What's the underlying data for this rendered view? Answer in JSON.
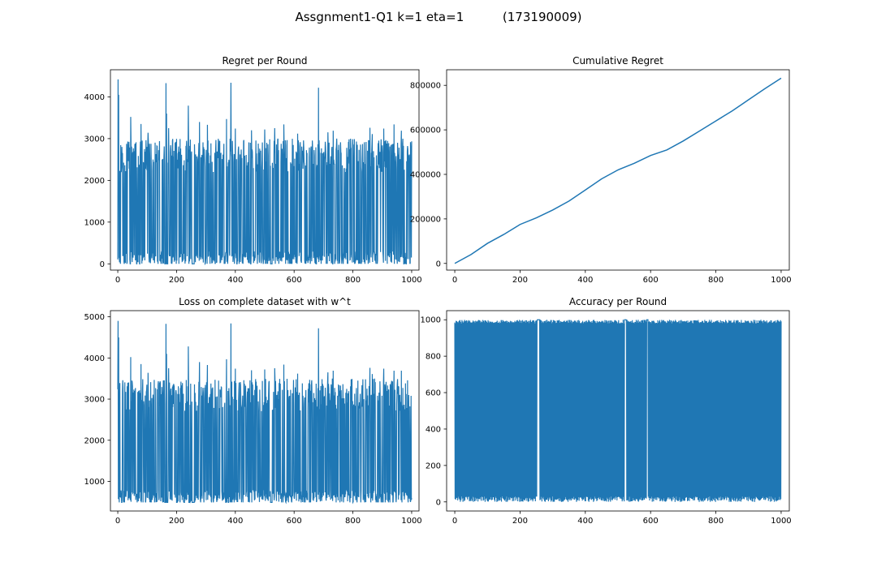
{
  "figure": {
    "suptitle": "Assgnment1-Q1 k=1 eta=1          (173190009)"
  },
  "colors": {
    "series": "#1f77b4",
    "axes": "#000000",
    "background": "#ffffff"
  },
  "chart_data": [
    {
      "type": "line",
      "title": "Regret per Round",
      "xlabel": "",
      "ylabel": "",
      "xlim": [
        -25,
        1025
      ],
      "ylim": [
        -150,
        4650
      ],
      "xticks": [
        0,
        200,
        400,
        600,
        800,
        1000
      ],
      "yticks": [
        0,
        1000,
        2000,
        3000,
        4000
      ],
      "grid": false,
      "series": [
        {
          "noise": {
            "n": 1001,
            "base": 0,
            "peak_min": 2200,
            "peak_max": 3000,
            "low_prob": 0.5,
            "gap_prob": 0.07,
            "seed": 11
          },
          "spikes": [
            [
              1,
              4420
            ],
            [
              3,
              4050
            ],
            [
              44,
              3520
            ],
            [
              79,
              3350
            ],
            [
              103,
              3140
            ],
            [
              164,
              4330
            ],
            [
              166,
              3600
            ],
            [
              173,
              3250
            ],
            [
              240,
              3790
            ],
            [
              278,
              3400
            ],
            [
              305,
              3330
            ],
            [
              370,
              3470
            ],
            [
              385,
              4340
            ],
            [
              400,
              3240
            ],
            [
              455,
              3200
            ],
            [
              500,
              3220
            ],
            [
              534,
              3250
            ],
            [
              565,
              3340
            ],
            [
              612,
              3120
            ],
            [
              683,
              4220
            ],
            [
              715,
              3150
            ],
            [
              733,
              3190
            ],
            [
              858,
              3260
            ],
            [
              866,
              3110
            ],
            [
              905,
              3240
            ],
            [
              940,
              3340
            ],
            [
              965,
              3190
            ],
            [
              990,
              2600
            ],
            [
              998,
              2580
            ]
          ],
          "gaps": [
            [
              160,
              170
            ],
            [
              253,
              260
            ],
            [
              520,
              525
            ]
          ]
        }
      ]
    },
    {
      "type": "line",
      "title": "Cumulative Regret",
      "xlabel": "",
      "ylabel": "",
      "xlim": [
        -25,
        1025
      ],
      "ylim": [
        -30000,
        870000
      ],
      "xticks": [
        0,
        200,
        400,
        600,
        800,
        1000
      ],
      "yticks": [
        0,
        200000,
        400000,
        600000,
        800000
      ],
      "grid": false,
      "series": [
        {
          "x": [
            0,
            50,
            100,
            150,
            200,
            250,
            300,
            350,
            400,
            450,
            500,
            550,
            600,
            650,
            700,
            750,
            800,
            850,
            900,
            950,
            1000
          ],
          "y": [
            0,
            40000,
            90000,
            130000,
            175000,
            205000,
            240000,
            280000,
            330000,
            380000,
            420000,
            450000,
            485000,
            510000,
            550000,
            595000,
            640000,
            685000,
            735000,
            785000,
            832000
          ]
        }
      ]
    },
    {
      "type": "line",
      "title": "Loss on complete dataset with w^t",
      "xlabel": "",
      "ylabel": "",
      "xlim": [
        -25,
        1025
      ],
      "ylim": [
        280,
        5150
      ],
      "xticks": [
        0,
        200,
        400,
        600,
        800,
        1000
      ],
      "yticks": [
        1000,
        2000,
        3000,
        4000,
        5000
      ],
      "grid": false,
      "series": [
        {
          "noise": {
            "n": 1001,
            "base": 490,
            "peak_min": 2700,
            "peak_max": 3500,
            "low_prob": 0.5,
            "gap_prob": 0.07,
            "seed": 29
          },
          "spikes": [
            [
              1,
              4900
            ],
            [
              3,
              4500
            ],
            [
              44,
              4020
            ],
            [
              79,
              3850
            ],
            [
              103,
              3640
            ],
            [
              164,
              4830
            ],
            [
              166,
              4100
            ],
            [
              173,
              3750
            ],
            [
              240,
              4280
            ],
            [
              278,
              3900
            ],
            [
              305,
              3830
            ],
            [
              370,
              3970
            ],
            [
              385,
              4840
            ],
            [
              400,
              3740
            ],
            [
              455,
              3700
            ],
            [
              500,
              3720
            ],
            [
              534,
              3750
            ],
            [
              565,
              3840
            ],
            [
              612,
              3620
            ],
            [
              683,
              4720
            ],
            [
              715,
              3650
            ],
            [
              733,
              3690
            ],
            [
              858,
              3760
            ],
            [
              866,
              3610
            ],
            [
              905,
              3740
            ],
            [
              940,
              3690
            ],
            [
              965,
              3690
            ],
            [
              990,
              3100
            ],
            [
              998,
              3080
            ]
          ],
          "gaps": [
            [
              160,
              170
            ],
            [
              253,
              260
            ],
            [
              520,
              525
            ]
          ]
        }
      ]
    },
    {
      "type": "line",
      "title": "Accuracy per Round",
      "xlabel": "",
      "ylabel": "",
      "xlim": [
        -25,
        1025
      ],
      "ylim": [
        -50,
        1050
      ],
      "xticks": [
        0,
        200,
        400,
        600,
        800,
        1000
      ],
      "yticks": [
        0,
        200,
        400,
        600,
        800,
        1000
      ],
      "grid": false,
      "series": [
        {
          "oscillate": {
            "n": 1001,
            "low": [
              0,
              30
            ],
            "high": [
              980,
              1000
            ],
            "seed": 47
          },
          "gaps": [
            [
              253,
              260
            ],
            [
              520,
              525
            ],
            [
              588,
              592
            ]
          ]
        }
      ]
    }
  ]
}
